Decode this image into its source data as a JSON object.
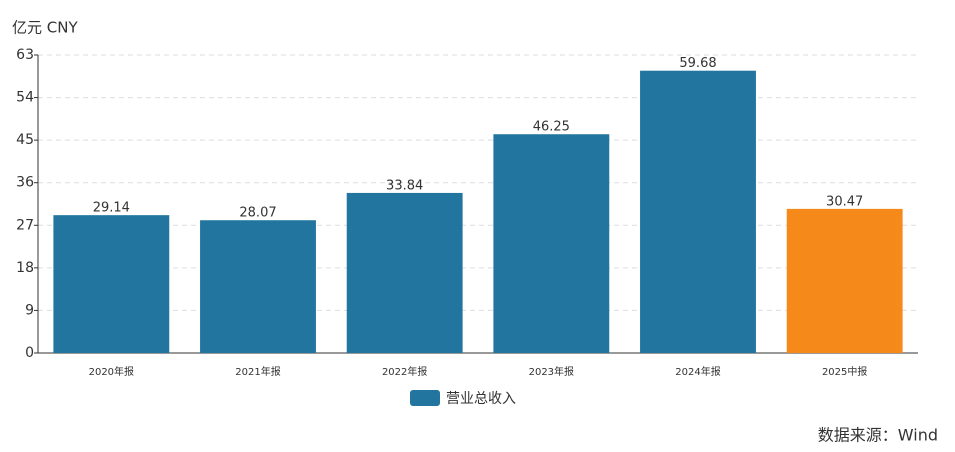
{
  "chart_data": {
    "type": "bar",
    "unit_label": "亿元  CNY",
    "categories": [
      "2020年报",
      "2021年报",
      "2022年报",
      "2023年报",
      "2024年报",
      "2025中报"
    ],
    "series": [
      {
        "name": "营业总收入",
        "color": "#21759f",
        "point_colors": [
          "#21759f",
          "#21759f",
          "#21759f",
          "#21759f",
          "#21759f",
          "#f5891a"
        ],
        "values": [
          29.14,
          28.07,
          33.84,
          46.25,
          59.68,
          30.47
        ]
      }
    ],
    "ylim": [
      0,
      63
    ],
    "yticks": [
      0,
      9,
      18,
      27,
      36,
      45,
      54,
      63
    ],
    "grid": true,
    "source": "数据来源：Wind",
    "source_color": "#e0201c"
  }
}
